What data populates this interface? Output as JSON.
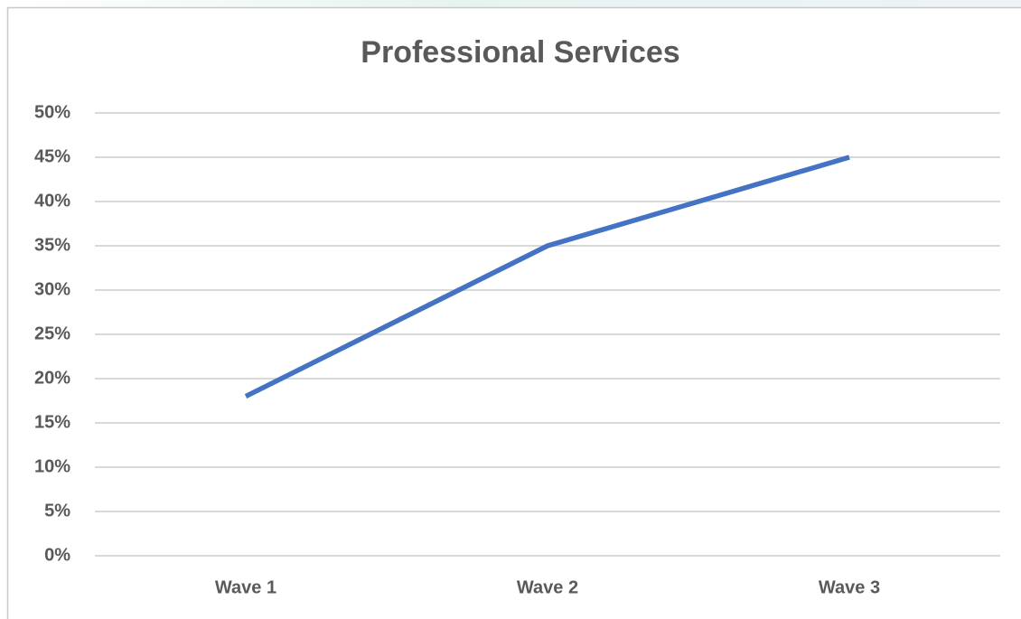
{
  "chart_data": {
    "type": "line",
    "title": "Professional Services",
    "categories": [
      "Wave 1",
      "Wave 2",
      "Wave 3"
    ],
    "values": [
      18,
      35,
      45
    ],
    "color": "#4472c4",
    "ylim": [
      0,
      50
    ],
    "yticks": [
      {
        "value": 0,
        "label": "0%"
      },
      {
        "value": 5,
        "label": "5%"
      },
      {
        "value": 10,
        "label": "10%"
      },
      {
        "value": 15,
        "label": "15%"
      },
      {
        "value": 20,
        "label": "20%"
      },
      {
        "value": 25,
        "label": "25%"
      },
      {
        "value": 30,
        "label": "30%"
      },
      {
        "value": 35,
        "label": "35%"
      },
      {
        "value": 40,
        "label": "40%"
      },
      {
        "value": 45,
        "label": "45%"
      },
      {
        "value": 50,
        "label": "50%"
      }
    ],
    "grid": true
  }
}
